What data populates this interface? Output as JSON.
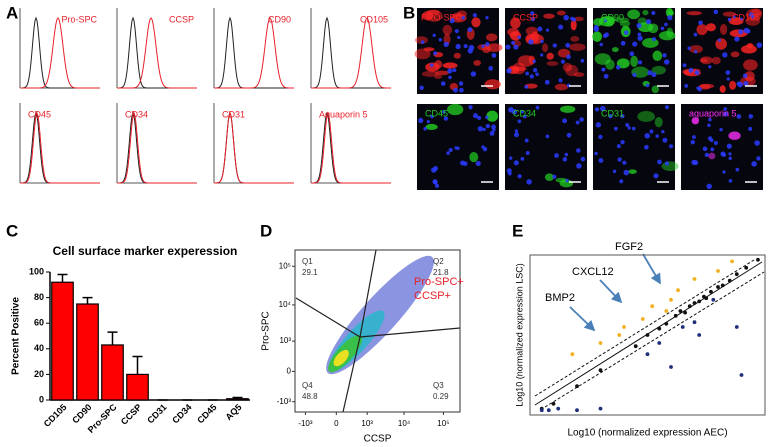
{
  "figure": {
    "panel_labels": [
      "A",
      "B",
      "C",
      "D",
      "E"
    ]
  },
  "histograms": {
    "labels": [
      "Pro-SPC",
      "CCSP",
      "CD90",
      "CD105",
      "CD45",
      "CD34",
      "CD31",
      "Aquaporin 5"
    ],
    "label_color": "#e8202a"
  },
  "images": {
    "labels": [
      "PRO-SPC",
      "CCSP",
      "CD90",
      "CD105",
      "CD45",
      "CD34",
      "CD31",
      "aquaporin 5"
    ],
    "label_colors": [
      "#ff2424",
      "#ff2424",
      "#22d022",
      "#ff2424",
      "#22d022",
      "#22d022",
      "#22d022",
      "#ff30ff"
    ]
  },
  "chart_data": [
    {
      "type": "bar",
      "title": "Cell surface marker experession",
      "y_label": "Percent Positive",
      "categories": [
        "CD105",
        "CD90",
        "Pro-SPC",
        "CCSP",
        "CD31",
        "CD34",
        "CD45",
        "AQ5"
      ],
      "values": [
        92,
        75,
        43,
        20,
        0,
        0,
        0,
        1
      ],
      "errors": [
        6,
        5,
        10,
        14,
        0,
        0,
        0,
        1
      ],
      "color": "#ff0000",
      "ylim": [
        0,
        100
      ],
      "yticks": [
        0,
        20,
        40,
        60,
        80,
        100
      ]
    },
    {
      "type": "flow",
      "x_label": "CCSP",
      "y_label": "Pro-SPC",
      "xlim": [
        -2000,
        262144
      ],
      "ylim": [
        -2000,
        262144
      ],
      "xticks": [
        {
          "value": -1000,
          "label": "-10³"
        },
        0,
        {
          "value": 1000,
          "label": "10³"
        },
        {
          "value": 10000,
          "label": "10⁴"
        },
        {
          "value": 100000,
          "label": "10⁵"
        }
      ],
      "yticks": [
        {
          "value": -1000,
          "label": "-10³"
        },
        0,
        {
          "value": 1000,
          "label": "10³"
        },
        {
          "value": 10000,
          "label": "10⁴"
        },
        {
          "value": 100000,
          "label": "10⁵"
        }
      ],
      "quadrants": [
        {
          "name": "Q1",
          "value": 29.1
        },
        {
          "name": "Q2",
          "value": 21.8
        },
        {
          "name": "Q3",
          "value": 0.29
        },
        {
          "name": "Q4",
          "value": 48.8
        }
      ],
      "annotation": [
        "Pro-SPC+",
        "CCSP+"
      ],
      "annotation_color": "#e8202a"
    },
    {
      "type": "scatter",
      "x_label": "Log10 (normalized expression AEC)",
      "y_label": "Log10 (normalized expression LSC)",
      "xlim": [
        0,
        100
      ],
      "ylim": [
        0,
        100
      ],
      "series": [
        {
          "color": "#111111",
          "x": [
            5,
            10,
            20,
            30,
            45,
            50,
            55,
            58,
            62,
            64,
            66,
            68,
            70,
            72,
            74,
            75,
            77,
            80,
            82,
            85,
            88,
            92,
            97
          ],
          "values": [
            4,
            7,
            18,
            28,
            43,
            50,
            54,
            57,
            62,
            65,
            64,
            68,
            70,
            71,
            74,
            73,
            77,
            80,
            81,
            84,
            88,
            92,
            97
          ]
        },
        {
          "color": "#f2b120",
          "x": [
            18,
            30,
            38,
            40,
            48,
            52,
            58,
            60,
            63,
            70,
            80,
            86
          ],
          "values": [
            38,
            45,
            50,
            55,
            60,
            68,
            65,
            72,
            78,
            85,
            90,
            96
          ]
        },
        {
          "color": "#1f2f7a",
          "x": [
            5,
            8,
            12,
            20,
            30,
            50,
            55,
            60,
            65,
            70,
            72,
            78,
            88,
            90
          ],
          "values": [
            3,
            3,
            4,
            3,
            4,
            38,
            45,
            30,
            55,
            58,
            50,
            72,
            55,
            25
          ]
        }
      ],
      "annotations": [
        "FGF2",
        "CXCL12",
        "BMP2"
      ]
    }
  ]
}
